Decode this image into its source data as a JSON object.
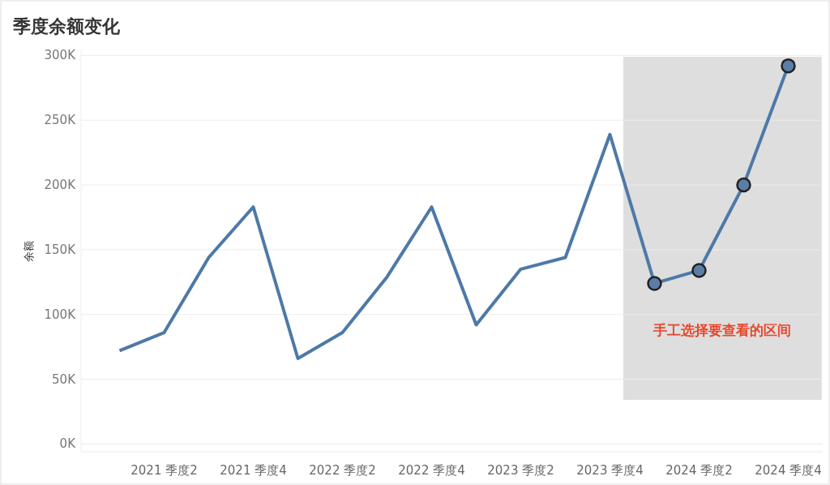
{
  "chart_data": {
    "type": "line",
    "title": "季度余额变化",
    "ylabel": "余额",
    "categories": [
      null,
      "2021 季度2",
      null,
      "2021 季度4",
      null,
      "2022 季度2",
      null,
      "2022 季度4",
      null,
      "2023 季度2",
      null,
      "2023 季度4",
      null,
      "2024 季度2",
      null,
      "2024 季度4"
    ],
    "series": [
      {
        "color": "#4e79a7",
        "values": [
          72000,
          86000,
          144000,
          183000,
          66000,
          86000,
          129000,
          183000,
          92000,
          135000,
          144000,
          239000,
          124000,
          134000,
          200000,
          292000
        ]
      },
      {
        "type": "scatter",
        "color": "#5b7ea6",
        "values": [
          null,
          null,
          null,
          null,
          null,
          null,
          null,
          null,
          null,
          null,
          null,
          null,
          124000,
          134000,
          200000,
          292000
        ]
      }
    ],
    "ylim": [
      -6000,
      304000
    ],
    "yticks": [
      {
        "value": 0,
        "label": "0K"
      },
      {
        "value": 50000,
        "label": "50K"
      },
      {
        "value": 100000,
        "label": "100K"
      },
      {
        "value": 150000,
        "label": "150K"
      },
      {
        "value": 200000,
        "label": "200K"
      },
      {
        "value": 250000,
        "label": "250K"
      },
      {
        "value": 300000,
        "label": "300K"
      }
    ],
    "annotations": [
      "手工选择要查看的区间"
    ],
    "grid": "y",
    "line_style": "solid"
  }
}
